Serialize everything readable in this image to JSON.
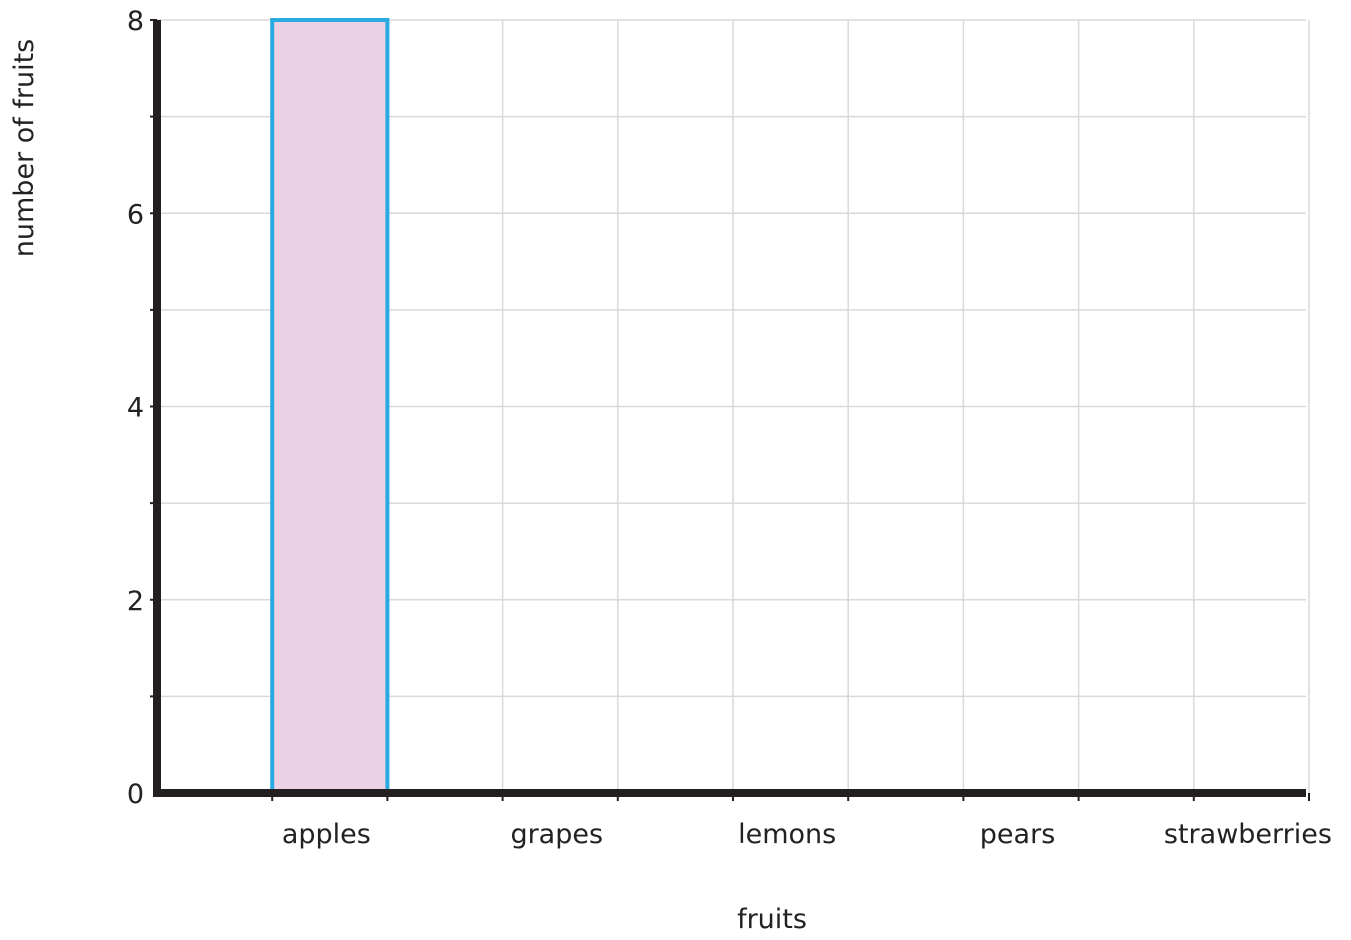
{
  "chart_data": {
    "type": "bar",
    "categories": [
      "apples",
      "grapes",
      "lemons",
      "pears",
      "strawberries"
    ],
    "values": [
      8,
      0,
      0,
      0,
      0
    ],
    "xlabel": "fruits",
    "ylabel": "number of fruits",
    "ylim": [
      0,
      8
    ],
    "yticks": [
      0,
      2,
      4,
      6,
      8
    ],
    "ytick_labels": [
      "0",
      "2",
      "4",
      "6",
      "8"
    ],
    "grid": true,
    "legend": "none",
    "colors": {
      "bar_fill": "#ecd0e4",
      "bar_stroke": "#29abe2",
      "axis": "#231f20",
      "grid": "#d9d9d9"
    }
  }
}
